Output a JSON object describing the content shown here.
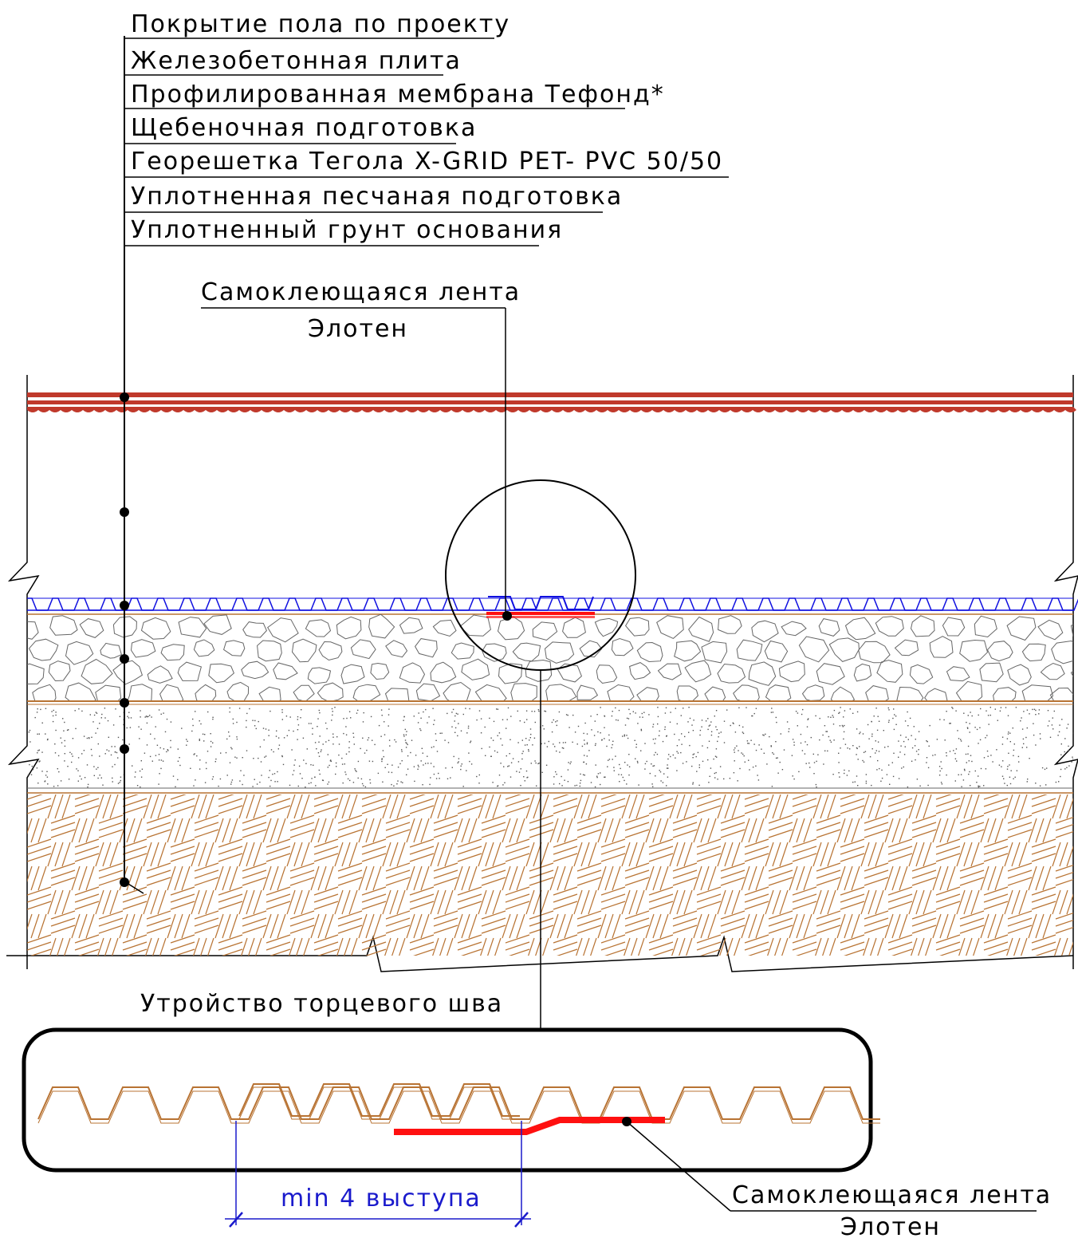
{
  "layer_labels": [
    "Покрытие пола по проекту",
    "Железобетонная плита",
    "Профилированная мембрана Тефонд*",
    "Щебеночная подготовка",
    "Георешетка Тегола X-GRID PET- PVC 50/50",
    "Уплотненная песчаная подготовка",
    "Уплотненный грунт основания"
  ],
  "tape_callout": {
    "line1": "Самоклеющаяся лента",
    "line2": "Элотен"
  },
  "detail": {
    "title": "Утройство торцевого шва",
    "dimension": "min 4 выступа",
    "tape_line1": "Самоклеющаяся лента",
    "tape_line2": "Элотен"
  },
  "colors": {
    "floor": "#c0392b",
    "membrane": "#1010e0",
    "soil": "#b87333",
    "tape": "#ff1010",
    "dimension": "#1a1acc"
  }
}
